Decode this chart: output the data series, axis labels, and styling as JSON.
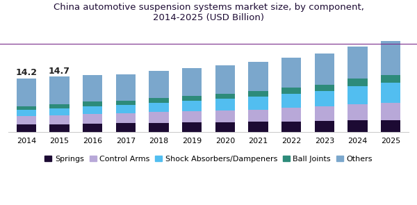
{
  "title": "China automotive suspension systems market size, by component,\n2014-2025 (USD Billion)",
  "years": [
    2014,
    2015,
    2016,
    2017,
    2018,
    2019,
    2020,
    2021,
    2022,
    2023,
    2024,
    2025
  ],
  "components": [
    "Springs",
    "Control Arms",
    "Shock Absorbers/Dampeners",
    "Ball Joints",
    "Others"
  ],
  "colors": [
    "#1c0a33",
    "#b8a8d8",
    "#52bef0",
    "#2d8b7a",
    "#7ba7cc"
  ],
  "data": {
    "Springs": [
      2.0,
      2.1,
      2.3,
      2.4,
      2.5,
      2.6,
      2.7,
      2.8,
      2.9,
      3.0,
      3.1,
      3.2
    ],
    "Control Arms": [
      2.2,
      2.3,
      2.5,
      2.6,
      2.8,
      2.9,
      3.1,
      3.2,
      3.5,
      3.8,
      4.2,
      4.5
    ],
    "Shock Absorbers/Dampeners": [
      1.8,
      1.9,
      2.1,
      2.2,
      2.5,
      2.8,
      3.0,
      3.4,
      3.8,
      4.1,
      4.8,
      5.3
    ],
    "Ball Joints": [
      0.9,
      1.0,
      1.2,
      1.1,
      1.2,
      1.3,
      1.3,
      1.4,
      1.6,
      1.7,
      2.0,
      2.1
    ],
    "Others": [
      7.3,
      7.4,
      6.9,
      7.0,
      7.2,
      7.3,
      7.5,
      7.7,
      7.9,
      8.2,
      8.5,
      8.9
    ]
  },
  "totals_2014": "14.2",
  "totals_2015": "14.7",
  "bar_width": 0.6,
  "ylim": [
    0,
    28
  ],
  "bg_color": "#ffffff",
  "title_color": "#1c0a33",
  "title_fontsize": 9.5,
  "annotation_fontsize": 9,
  "legend_fontsize": 8,
  "tick_fontsize": 8,
  "purple_line_color": "#7b2d8b",
  "spine_color": "#cccccc"
}
